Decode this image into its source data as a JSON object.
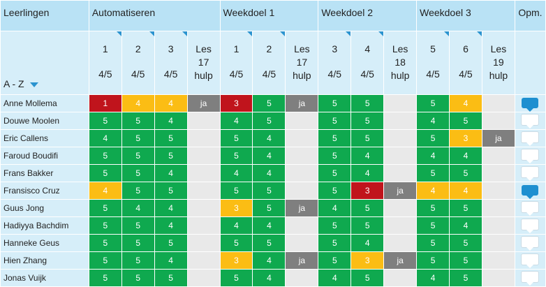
{
  "header": {
    "students_label": "Leerlingen",
    "opm_label": "Opm.",
    "sort_label": "A - Z",
    "groups": [
      {
        "label": "Automatiseren"
      },
      {
        "label": "Weekdoel 1"
      },
      {
        "label": "Weekdoel 2"
      },
      {
        "label": "Weekdoel 3"
      }
    ],
    "columns": [
      {
        "num": "1",
        "frac": "4/5"
      },
      {
        "num": "2",
        "frac": "4/5"
      },
      {
        "num": "3",
        "frac": "4/5"
      },
      {
        "les1": "Les",
        "les2": "17",
        "les3": "hulp"
      },
      {
        "num": "1",
        "frac": "4/5"
      },
      {
        "num": "2",
        "frac": "4/5"
      },
      {
        "les1": "Les",
        "les2": "17",
        "les3": "hulp"
      },
      {
        "num": "3",
        "frac": "4/5"
      },
      {
        "num": "4",
        "frac": "4/5"
      },
      {
        "les1": "Les",
        "les2": "18",
        "les3": "hulp"
      },
      {
        "num": "5",
        "frac": "4/5"
      },
      {
        "num": "6",
        "frac": "4/5"
      },
      {
        "les1": "Les",
        "les2": "19",
        "les3": "hulp"
      }
    ]
  },
  "colors": {
    "green": "#0fa94f",
    "yellow": "#fbbd14",
    "red": "#c0141c",
    "gray": "#7f7f7f",
    "empty": "#e9e9e9"
  },
  "rows": [
    {
      "name": "Anne Mollema",
      "comment": "filled",
      "cells": [
        [
          "1",
          "red"
        ],
        [
          "4",
          "yellow"
        ],
        [
          "4",
          "yellow"
        ],
        [
          "ja",
          "gray"
        ],
        [
          "3",
          "red"
        ],
        [
          "5",
          "green"
        ],
        [
          "ja",
          "gray"
        ],
        [
          "5",
          "green"
        ],
        [
          "5",
          "green"
        ],
        [
          "",
          "empty"
        ],
        [
          "5",
          "green"
        ],
        [
          "4",
          "yellow"
        ],
        [
          "",
          "empty"
        ]
      ]
    },
    {
      "name": "Douwe Moolen",
      "comment": "empty",
      "cells": [
        [
          "5",
          "green"
        ],
        [
          "5",
          "green"
        ],
        [
          "4",
          "green"
        ],
        [
          "",
          "empty"
        ],
        [
          "4",
          "green"
        ],
        [
          "5",
          "green"
        ],
        [
          "",
          "empty"
        ],
        [
          "5",
          "green"
        ],
        [
          "5",
          "green"
        ],
        [
          "",
          "empty"
        ],
        [
          "4",
          "green"
        ],
        [
          "5",
          "green"
        ],
        [
          "",
          "empty"
        ]
      ]
    },
    {
      "name": "Eric Callens",
      "comment": "empty",
      "cells": [
        [
          "4",
          "green"
        ],
        [
          "5",
          "green"
        ],
        [
          "5",
          "green"
        ],
        [
          "",
          "empty"
        ],
        [
          "5",
          "green"
        ],
        [
          "4",
          "green"
        ],
        [
          "",
          "empty"
        ],
        [
          "5",
          "green"
        ],
        [
          "5",
          "green"
        ],
        [
          "",
          "empty"
        ],
        [
          "5",
          "green"
        ],
        [
          "3",
          "yellow"
        ],
        [
          "ja",
          "gray"
        ]
      ]
    },
    {
      "name": "Faroud Boudifi",
      "comment": "empty",
      "cells": [
        [
          "5",
          "green"
        ],
        [
          "5",
          "green"
        ],
        [
          "5",
          "green"
        ],
        [
          "",
          "empty"
        ],
        [
          "5",
          "green"
        ],
        [
          "4",
          "green"
        ],
        [
          "",
          "empty"
        ],
        [
          "5",
          "green"
        ],
        [
          "4",
          "green"
        ],
        [
          "",
          "empty"
        ],
        [
          "4",
          "green"
        ],
        [
          "4",
          "green"
        ],
        [
          "",
          "empty"
        ]
      ]
    },
    {
      "name": "Frans Bakker",
      "comment": "empty",
      "cells": [
        [
          "5",
          "green"
        ],
        [
          "5",
          "green"
        ],
        [
          "4",
          "green"
        ],
        [
          "",
          "empty"
        ],
        [
          "4",
          "green"
        ],
        [
          "4",
          "green"
        ],
        [
          "",
          "empty"
        ],
        [
          "5",
          "green"
        ],
        [
          "4",
          "green"
        ],
        [
          "",
          "empty"
        ],
        [
          "5",
          "green"
        ],
        [
          "5",
          "green"
        ],
        [
          "",
          "empty"
        ]
      ]
    },
    {
      "name": "Fransisco Cruz",
      "comment": "filled",
      "cells": [
        [
          "4",
          "yellow"
        ],
        [
          "5",
          "green"
        ],
        [
          "5",
          "green"
        ],
        [
          "",
          "empty"
        ],
        [
          "5",
          "green"
        ],
        [
          "5",
          "green"
        ],
        [
          "",
          "empty"
        ],
        [
          "5",
          "green"
        ],
        [
          "3",
          "red"
        ],
        [
          "ja",
          "gray"
        ],
        [
          "4",
          "yellow"
        ],
        [
          "4",
          "yellow"
        ],
        [
          "",
          "empty"
        ]
      ]
    },
    {
      "name": "Guus Jong",
      "comment": "empty",
      "cells": [
        [
          "5",
          "green"
        ],
        [
          "4",
          "green"
        ],
        [
          "4",
          "green"
        ],
        [
          "",
          "empty"
        ],
        [
          "3",
          "yellow"
        ],
        [
          "5",
          "green"
        ],
        [
          "ja",
          "gray"
        ],
        [
          "4",
          "green"
        ],
        [
          "5",
          "green"
        ],
        [
          "",
          "empty"
        ],
        [
          "5",
          "green"
        ],
        [
          "5",
          "green"
        ],
        [
          "",
          "empty"
        ]
      ]
    },
    {
      "name": "Hadiyya Bachdim",
      "comment": "empty",
      "cells": [
        [
          "5",
          "green"
        ],
        [
          "5",
          "green"
        ],
        [
          "4",
          "green"
        ],
        [
          "",
          "empty"
        ],
        [
          "4",
          "green"
        ],
        [
          "4",
          "green"
        ],
        [
          "",
          "empty"
        ],
        [
          "5",
          "green"
        ],
        [
          "5",
          "green"
        ],
        [
          "",
          "empty"
        ],
        [
          "5",
          "green"
        ],
        [
          "4",
          "green"
        ],
        [
          "",
          "empty"
        ]
      ]
    },
    {
      "name": "Hanneke Geus",
      "comment": "empty",
      "cells": [
        [
          "5",
          "green"
        ],
        [
          "5",
          "green"
        ],
        [
          "5",
          "green"
        ],
        [
          "",
          "empty"
        ],
        [
          "5",
          "green"
        ],
        [
          "5",
          "green"
        ],
        [
          "",
          "empty"
        ],
        [
          "5",
          "green"
        ],
        [
          "4",
          "green"
        ],
        [
          "",
          "empty"
        ],
        [
          "5",
          "green"
        ],
        [
          "5",
          "green"
        ],
        [
          "",
          "empty"
        ]
      ]
    },
    {
      "name": "Hien Zhang",
      "comment": "empty",
      "cells": [
        [
          "5",
          "green"
        ],
        [
          "5",
          "green"
        ],
        [
          "4",
          "green"
        ],
        [
          "",
          "empty"
        ],
        [
          "3",
          "yellow"
        ],
        [
          "4",
          "green"
        ],
        [
          "ja",
          "gray"
        ],
        [
          "5",
          "green"
        ],
        [
          "3",
          "yellow"
        ],
        [
          "ja",
          "gray"
        ],
        [
          "5",
          "green"
        ],
        [
          "5",
          "green"
        ],
        [
          "",
          "empty"
        ]
      ]
    },
    {
      "name": "Jonas Vuijk",
      "comment": "empty",
      "cells": [
        [
          "5",
          "green"
        ],
        [
          "5",
          "green"
        ],
        [
          "5",
          "green"
        ],
        [
          "",
          "empty"
        ],
        [
          "5",
          "green"
        ],
        [
          "4",
          "green"
        ],
        [
          "",
          "empty"
        ],
        [
          "4",
          "green"
        ],
        [
          "5",
          "green"
        ],
        [
          "",
          "empty"
        ],
        [
          "4",
          "green"
        ],
        [
          "5",
          "green"
        ],
        [
          "",
          "empty"
        ]
      ]
    }
  ]
}
